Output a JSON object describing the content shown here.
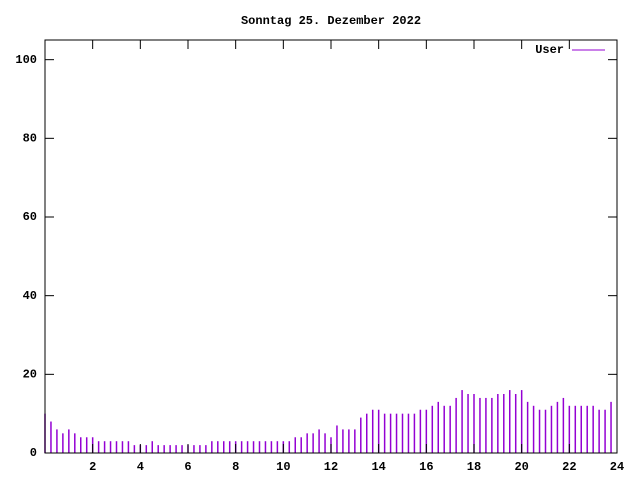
{
  "chart_data": {
    "type": "impulse",
    "title": "Sonntag 25. Dezember 2022",
    "series": [
      {
        "name": "User",
        "color": "#9400d3",
        "x": [
          0,
          0.25,
          0.5,
          0.75,
          1,
          1.25,
          1.5,
          1.75,
          2,
          2.25,
          2.5,
          2.75,
          3,
          3.25,
          3.5,
          3.75,
          4,
          4.25,
          4.5,
          4.75,
          5,
          5.25,
          5.5,
          5.75,
          6,
          6.25,
          6.5,
          6.75,
          7,
          7.25,
          7.5,
          7.75,
          8,
          8.25,
          8.5,
          8.75,
          9,
          9.25,
          9.5,
          9.75,
          10,
          10.25,
          10.5,
          10.75,
          11,
          11.25,
          11.5,
          11.75,
          12,
          12.25,
          12.5,
          12.75,
          13,
          13.25,
          13.5,
          13.75,
          14,
          14.25,
          14.5,
          14.75,
          15,
          15.25,
          15.5,
          15.75,
          16,
          16.25,
          16.5,
          16.75,
          17,
          17.25,
          17.5,
          17.75,
          18,
          18.25,
          18.5,
          18.75,
          19,
          19.25,
          19.5,
          19.75,
          20,
          20.25,
          20.5,
          20.75,
          21,
          21.25,
          21.5,
          21.75,
          22,
          22.25,
          22.5,
          22.75,
          23,
          23.25,
          23.5,
          23.75
        ],
        "values": [
          10,
          8,
          6,
          5,
          6,
          5,
          4,
          4,
          4,
          3,
          3,
          3,
          3,
          3,
          3,
          2,
          2,
          2,
          3,
          2,
          2,
          2,
          2,
          2,
          2,
          2,
          2,
          2,
          3,
          3,
          3,
          3,
          3,
          3,
          3,
          3,
          3,
          3,
          3,
          3,
          3,
          3,
          4,
          4,
          5,
          5,
          6,
          5,
          4,
          7,
          6,
          6,
          6,
          9,
          10,
          11,
          11,
          10,
          10,
          10,
          10,
          10,
          10,
          11,
          11,
          12,
          13,
          12,
          12,
          14,
          16,
          15,
          15,
          14,
          14,
          14,
          15,
          15,
          16,
          15,
          16,
          13,
          12,
          11,
          11,
          12,
          13,
          14,
          12,
          12,
          12,
          12,
          12,
          11,
          11,
          13
        ]
      }
    ],
    "xlim": [
      0,
      24
    ],
    "xticks": [
      2,
      4,
      6,
      8,
      10,
      12,
      14,
      16,
      18,
      20,
      22,
      24
    ],
    "ylim": [
      0,
      105
    ],
    "yticks": [
      0,
      20,
      40,
      60,
      80,
      100
    ]
  }
}
